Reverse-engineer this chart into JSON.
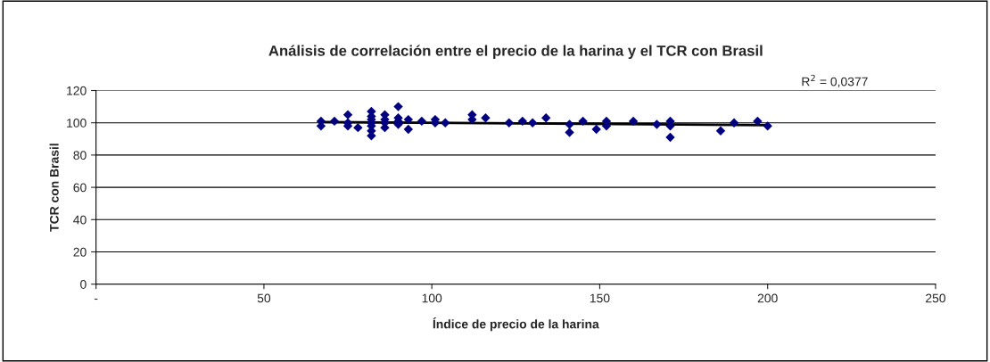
{
  "chart_data": {
    "type": "scatter",
    "title": "Análisis de correlación entre el precio de la harina y el TCR con Brasil",
    "xlabel": "Índice de precio de la harina",
    "ylabel": "TCR con Brasil",
    "xlim": [
      0,
      250
    ],
    "xticks": [
      {
        "value": 0,
        "label": "-"
      },
      50,
      100,
      150,
      200,
      250
    ],
    "ylim": [
      0,
      120
    ],
    "yticks": [
      0,
      20,
      40,
      60,
      80,
      100,
      120
    ],
    "grid": "y",
    "series": [
      {
        "marker": "diamond",
        "color": "#000080",
        "x": [
          67,
          67,
          71,
          75,
          75,
          75,
          78,
          82,
          82,
          82,
          82,
          82,
          82,
          82,
          86,
          86,
          86,
          86,
          90,
          90,
          90,
          90,
          93,
          93,
          97,
          101,
          101,
          104,
          112,
          112,
          116,
          123,
          127,
          130,
          134,
          141,
          141,
          145,
          149,
          152,
          152,
          160,
          167,
          171,
          171,
          171,
          186,
          190,
          197,
          200
        ],
        "values": [
          101,
          98,
          101,
          105,
          98,
          100,
          97,
          107,
          104,
          102,
          100,
          98,
          95,
          92,
          105,
          102,
          100,
          97,
          110,
          103,
          101,
          99,
          102,
          96,
          101,
          102,
          100,
          100,
          105,
          102,
          103,
          100,
          101,
          100,
          103,
          99,
          94,
          101,
          96,
          101,
          98,
          101,
          99,
          101,
          98,
          91,
          95,
          100,
          101,
          98
        ]
      },
      {
        "type": "line",
        "color": "#000000",
        "x": [
          67,
          200
        ],
        "values": [
          100.5,
          98.5
        ]
      }
    ],
    "annotations": [
      "R$^{2}$ = 0,0377"
    ]
  }
}
